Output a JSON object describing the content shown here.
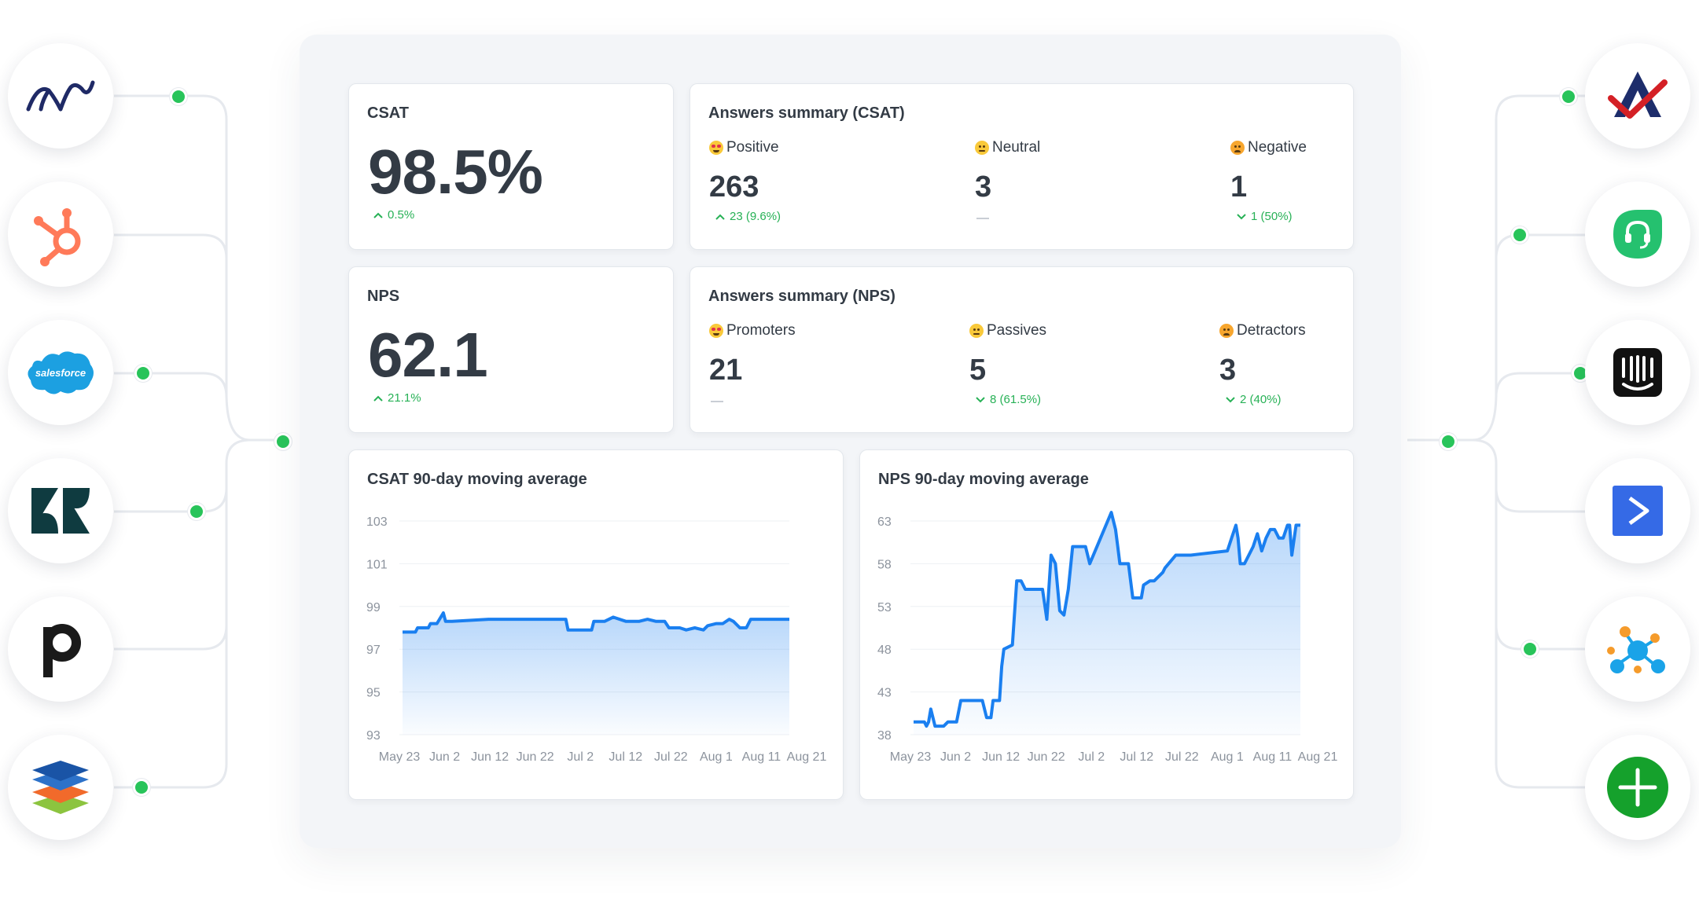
{
  "colors": {
    "accent_line": "#1a7ff0",
    "positive_trend": "#27b156",
    "connector_dot": "#28c45a"
  },
  "integrations": {
    "left": [
      "wave-logo-icon",
      "hubspot-icon",
      "salesforce-icon",
      "zendesk-icon",
      "pipedrive-icon",
      "stack-layers-icon"
    ],
    "right": [
      "check-a-logo-icon",
      "freshdesk-icon",
      "intercom-icon",
      "activecampaign-icon",
      "network-nodes-icon",
      "add-integration-icon"
    ],
    "salesforce_text": "salesforce"
  },
  "csat": {
    "title": "CSAT",
    "value": "98.5%",
    "trend": "0.5%",
    "trend_direction": "up"
  },
  "csat_summary": {
    "title": "Answers summary (CSAT)",
    "columns": [
      {
        "label": "Positive",
        "emoji": "heart-eyes",
        "value": "263",
        "delta": "23 (9.6%)",
        "direction": "up"
      },
      {
        "label": "Neutral",
        "emoji": "neutral-face",
        "value": "3",
        "delta": "",
        "direction": "none"
      },
      {
        "label": "Negative",
        "emoji": "angry-face",
        "value": "1",
        "delta": "1 (50%)",
        "direction": "down"
      }
    ]
  },
  "nps": {
    "title": "NPS",
    "value": "62.1",
    "trend": "21.1%",
    "trend_direction": "up"
  },
  "nps_summary": {
    "title": "Answers summary (NPS)",
    "columns": [
      {
        "label": "Promoters",
        "emoji": "heart-eyes",
        "value": "21",
        "delta": "",
        "direction": "none"
      },
      {
        "label": "Passives",
        "emoji": "neutral-face",
        "value": "5",
        "delta": "8 (61.5%)",
        "direction": "down"
      },
      {
        "label": "Detractors",
        "emoji": "angry-face",
        "value": "3",
        "delta": "2 (40%)",
        "direction": "down"
      }
    ]
  },
  "chart_data": [
    {
      "type": "area",
      "title": "CSAT 90-day moving average",
      "xlabel": "",
      "ylabel": "",
      "x_ticks": [
        "May 23",
        "Jun 2",
        "Jun 12",
        "Jun 22",
        "Jul 2",
        "Jul 12",
        "Jul 22",
        "Aug 1",
        "Aug 11",
        "Aug 21"
      ],
      "y_ticks": [
        93,
        95,
        97,
        99,
        101,
        103
      ],
      "ylim": [
        93,
        103
      ],
      "x_range_days": [
        0,
        90
      ],
      "grid": true,
      "series": [
        {
          "x": [
            0,
            3,
            3.5,
            6,
            6.5,
            8,
            9.5,
            10,
            11,
            11.5,
            20,
            35,
            38,
            38.5,
            44,
            44.5,
            47,
            49,
            52,
            55,
            57,
            59,
            61,
            62,
            63,
            64.5,
            66,
            68,
            70,
            71,
            73,
            74.5,
            76,
            77,
            78.5,
            80,
            81,
            90
          ],
          "y": [
            97.8,
            97.8,
            98.0,
            98.0,
            98.2,
            98.2,
            98.7,
            98.3,
            98.3,
            98.3,
            98.4,
            98.4,
            98.4,
            97.9,
            97.9,
            98.3,
            98.3,
            98.5,
            98.3,
            98.3,
            98.4,
            98.3,
            98.3,
            98.0,
            98.0,
            98.0,
            97.9,
            98.0,
            97.9,
            98.1,
            98.2,
            98.2,
            98.4,
            98.3,
            98.0,
            98.0,
            98.4,
            98.4
          ]
        }
      ]
    },
    {
      "type": "area",
      "title": "NPS 90-day moving average",
      "xlabel": "",
      "ylabel": "",
      "x_ticks": [
        "May 23",
        "Jun 2",
        "Jun 12",
        "Jun 22",
        "Jul 2",
        "Jul 12",
        "Jul 22",
        "Aug 1",
        "Aug 11",
        "Aug 21"
      ],
      "y_ticks": [
        38,
        43,
        48,
        53,
        58,
        63
      ],
      "ylim": [
        38,
        63
      ],
      "x_range_days": [
        0,
        90
      ],
      "grid": true,
      "series": [
        {
          "x": [
            0,
            2.5,
            3,
            3.5,
            4,
            5,
            6,
            7,
            8,
            9,
            10,
            11,
            16,
            17,
            18,
            18.5,
            20,
            20.5,
            21,
            23,
            24,
            25,
            26,
            30,
            31,
            32,
            33,
            34,
            35,
            36,
            37,
            39,
            39.5,
            40,
            41,
            46,
            47,
            47.5,
            48,
            50,
            51,
            53,
            53.5,
            55,
            56,
            58,
            58.5,
            61,
            61.5,
            64,
            64.5,
            73,
            74,
            75,
            75.5,
            76,
            77,
            79,
            80,
            81,
            82,
            83,
            84,
            85,
            86,
            87,
            87.5,
            88,
            89,
            90
          ],
          "y": [
            39.5,
            39.5,
            39,
            39.5,
            41,
            39,
            39,
            39,
            39.5,
            39.5,
            39.5,
            42,
            42,
            40,
            40,
            42,
            42,
            46,
            48,
            48.5,
            56,
            56,
            55,
            55,
            51.5,
            59,
            58,
            52.5,
            52,
            55,
            60,
            60,
            60,
            60,
            58,
            64,
            62,
            60,
            58,
            58,
            54,
            54,
            55.5,
            56,
            56,
            57,
            57.5,
            59,
            59,
            59,
            59,
            59.5,
            61,
            62.5,
            61,
            58,
            58,
            60,
            61.5,
            59.5,
            61,
            62,
            62,
            61,
            61,
            62.5,
            62.5,
            59,
            62.5,
            62.5
          ]
        }
      ]
    }
  ]
}
